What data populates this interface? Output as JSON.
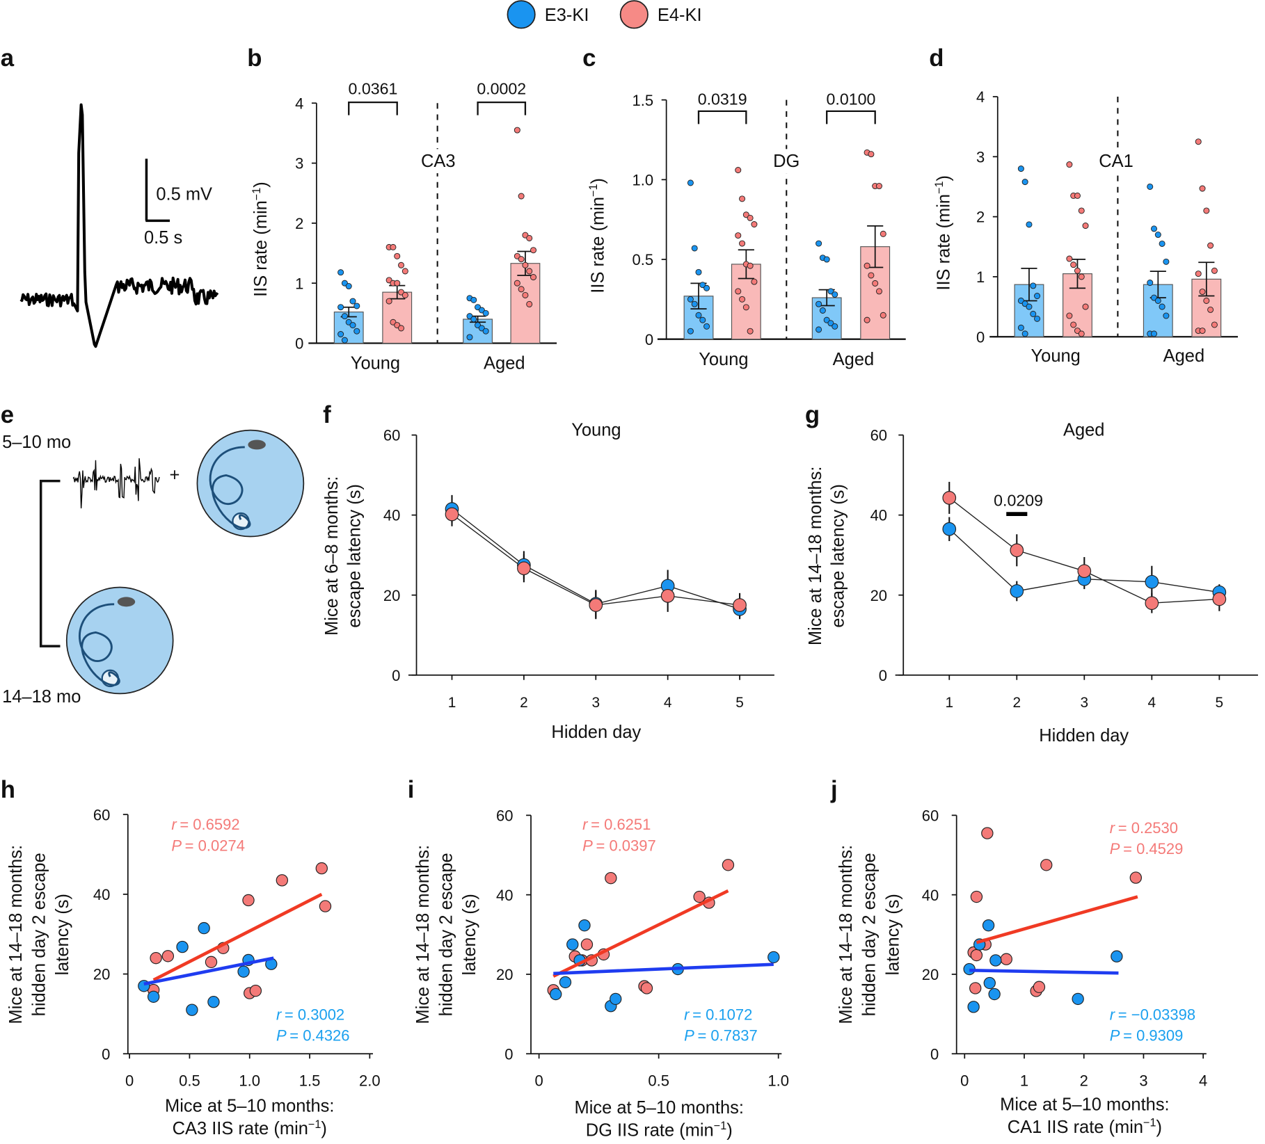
{
  "legend": [
    {
      "name": "E3-KI",
      "color": "#1a94f0"
    },
    {
      "name": "E4-KI",
      "color": "#f68a86"
    }
  ],
  "colors": {
    "e3_point": "#1a94f0",
    "e4_point": "#f47a78",
    "e3_bar": "#80c8f8",
    "e4_bar": "#f9b9b8",
    "e3_line": "#1f3cf0",
    "e4_line": "#f03a24",
    "e3_text": "#1aa0ef",
    "e4_text": "#f47a78"
  },
  "panels": {
    "a": "a",
    "b": "b",
    "c": "c",
    "d": "d",
    "e": "e",
    "f": "f",
    "g": "g",
    "h": "h",
    "i": "i",
    "j": "j"
  },
  "panel_a": {
    "scale_v": "0.5 mV",
    "scale_h": "0.5 s"
  },
  "panel_e": {
    "young_age": "5–10 mo",
    "aged_age": "14–18 mo",
    "plus": "+"
  },
  "chart_data": [
    {
      "id": "b",
      "type": "bar",
      "region": "CA3",
      "ylabel": "IIS rate (min",
      "ylabel_sup": "−1",
      "ylabel_end": ")",
      "ylim": [
        0,
        4
      ],
      "yticks": [
        "0",
        "1",
        "2",
        "3",
        "4"
      ],
      "categories": [
        "Young",
        "Aged"
      ],
      "bars": {
        "E3-KI": [
          0.52,
          0.4
        ],
        "E4-KI": [
          0.85,
          1.33
        ]
      },
      "sem": {
        "E3-KI": [
          0.08,
          0.05
        ],
        "E4-KI": [
          0.11,
          0.2
        ]
      },
      "points": {
        "E3-KI": [
          [
            1.18,
            1.0,
            0.95,
            0.7,
            0.62,
            0.6,
            0.45,
            0.35,
            0.3,
            0.2,
            0.15,
            0.05
          ],
          [
            0.75,
            0.72,
            0.6,
            0.55,
            0.5,
            0.45,
            0.4,
            0.3,
            0.25,
            0.2,
            0.1
          ]
        ],
        "E4-KI": [
          [
            1.6,
            1.6,
            1.45,
            1.3,
            1.2,
            1.05,
            1.0,
            1.0,
            0.85,
            0.8,
            0.7,
            0.35,
            0.3,
            0.25
          ],
          [
            3.55,
            2.45,
            1.8,
            1.75,
            1.55,
            1.45,
            1.4,
            1.3,
            1.2,
            1.1,
            1.0,
            0.9,
            0.8,
            0.65
          ]
        ]
      },
      "pvalues": [
        "0.0361",
        "0.0002"
      ]
    },
    {
      "id": "c",
      "type": "bar",
      "region": "DG",
      "ylabel": "IIS rate (min",
      "ylabel_sup": "−1",
      "ylabel_end": ")",
      "ylim": [
        0,
        1.5
      ],
      "yticks": [
        "0",
        "0.5",
        "1.0",
        "1.5"
      ],
      "categories": [
        "Young",
        "Aged"
      ],
      "bars": {
        "E3-KI": [
          0.27,
          0.26
        ],
        "E4-KI": [
          0.47,
          0.58
        ]
      },
      "sem": {
        "E3-KI": [
          0.08,
          0.05
        ],
        "E4-KI": [
          0.09,
          0.13
        ]
      },
      "points": {
        "E3-KI": [
          [
            0.98,
            0.57,
            0.42,
            0.34,
            0.32,
            0.25,
            0.22,
            0.15,
            0.12,
            0.08,
            0.05
          ],
          [
            0.6,
            0.51,
            0.5,
            0.3,
            0.28,
            0.22,
            0.18,
            0.12,
            0.1,
            0.08,
            0.06
          ]
        ],
        "E4-KI": [
          [
            1.06,
            0.88,
            0.78,
            0.76,
            0.72,
            0.65,
            0.6,
            0.47,
            0.46,
            0.36,
            0.3,
            0.25,
            0.2,
            0.05
          ],
          [
            1.17,
            1.16,
            0.96,
            0.96,
            0.66,
            0.46,
            0.4,
            0.35,
            0.3,
            0.15,
            0.12
          ]
        ]
      },
      "pvalues": [
        "0.0319",
        "0.0100"
      ]
    },
    {
      "id": "d",
      "type": "bar",
      "region": "CA1",
      "ylabel": "IIS rate (min",
      "ylabel_sup": "−1",
      "ylabel_end": ")",
      "ylim": [
        0,
        4
      ],
      "yticks": [
        "0",
        "1",
        "2",
        "3",
        "4"
      ],
      "categories": [
        "Young",
        "Aged"
      ],
      "bars": {
        "E3-KI": [
          0.87,
          0.87
        ],
        "E4-KI": [
          1.05,
          0.96
        ]
      },
      "sem": {
        "E3-KI": [
          0.27,
          0.22
        ],
        "E4-KI": [
          0.24,
          0.28
        ]
      },
      "points": {
        "E3-KI": [
          [
            2.8,
            2.58,
            1.87,
            0.85,
            0.68,
            0.6,
            0.55,
            0.5,
            0.38,
            0.3,
            0.15,
            0.05
          ],
          [
            2.5,
            1.8,
            1.7,
            1.55,
            1.25,
            0.9,
            0.65,
            0.6,
            0.5,
            0.35,
            0.05,
            0.05
          ]
        ],
        "E4-KI": [
          [
            2.87,
            2.35,
            2.35,
            2.1,
            1.85,
            1.3,
            1.2,
            1.1,
            1.0,
            0.5,
            0.35,
            0.2,
            0.1,
            0.05
          ],
          [
            3.25,
            2.47,
            2.1,
            1.52,
            1.1,
            1.05,
            0.75,
            0.6,
            0.45,
            0.2,
            0.1,
            0.1
          ]
        ]
      },
      "pvalues": []
    },
    {
      "id": "f",
      "type": "line",
      "title": "Young",
      "xlabel": "Hidden day",
      "ylabel_lines": [
        "Mice at 6–8 months:",
        "escape latency (s)"
      ],
      "ylim": [
        0,
        60
      ],
      "yticks": [
        "0",
        "20",
        "40",
        "60"
      ],
      "x": [
        1,
        2,
        3,
        4,
        5
      ],
      "xticks": [
        "1",
        "2",
        "3",
        "4",
        "5"
      ],
      "series": [
        {
          "name": "E3-KI",
          "values": [
            41.5,
            27.5,
            17.8,
            22.3,
            16.5
          ],
          "err": [
            3.5,
            3.5,
            3.5,
            4,
            2.5
          ]
        },
        {
          "name": "E4-KI",
          "values": [
            40.2,
            26.7,
            17.5,
            19.8,
            17.5
          ],
          "err": [
            3,
            3.5,
            3.5,
            4,
            3
          ]
        }
      ],
      "annotation": ""
    },
    {
      "id": "g",
      "type": "line",
      "title": "Aged",
      "xlabel": "Hidden day",
      "ylabel_lines": [
        "Mice at 14–18 months:",
        "escape latency (s)"
      ],
      "ylim": [
        0,
        60
      ],
      "yticks": [
        "0",
        "20",
        "40",
        "60"
      ],
      "x": [
        1,
        2,
        3,
        4,
        5
      ],
      "xticks": [
        "1",
        "2",
        "3",
        "4",
        "5"
      ],
      "series": [
        {
          "name": "E3-KI",
          "values": [
            36.5,
            21,
            24,
            23.3,
            20.7
          ],
          "err": [
            3,
            2.5,
            2.5,
            4,
            2
          ]
        },
        {
          "name": "E4-KI",
          "values": [
            44.3,
            31.2,
            26,
            18,
            19
          ],
          "err": [
            4,
            4,
            3.5,
            2.5,
            3
          ]
        }
      ],
      "annotation": "0.0209",
      "annotation_day": 2
    },
    {
      "id": "h",
      "type": "scatter",
      "xlabel_lines": [
        "Mice at 5–10 months:",
        "CA3 IIS rate (min"
      ],
      "xlabel_sup": "−1",
      "xlabel_end": ")",
      "ylabel_lines": [
        "Mice at 14–18 months:",
        "hidden day 2 escape",
        "latency (s)"
      ],
      "xlim": [
        0,
        2
      ],
      "xticks": [
        "0",
        "0.5",
        "1.0",
        "1.5",
        "2.0"
      ],
      "xtick_vals": [
        0,
        0.5,
        1,
        1.5,
        2
      ],
      "ylim": [
        0,
        60
      ],
      "yticks": [
        "0",
        "20",
        "40",
        "60"
      ],
      "series": [
        {
          "name": "E4-KI",
          "points": [
            [
              0.2,
              16
            ],
            [
              0.22,
              24
            ],
            [
              0.32,
              24.5
            ],
            [
              0.68,
              23
            ],
            [
              0.78,
              26.5
            ],
            [
              0.99,
              38.5
            ],
            [
              1.0,
              15.2
            ],
            [
              1.05,
              15.8
            ],
            [
              1.27,
              43.5
            ],
            [
              1.6,
              46.5
            ],
            [
              1.63,
              37
            ]
          ],
          "fit": [
            [
              0.2,
              18.5
            ],
            [
              1.6,
              40
            ]
          ],
          "r_label": "r",
          "r": "= 0.6592",
          "p_label": "P",
          "p": "= 0.0274"
        },
        {
          "name": "E3-KI",
          "points": [
            [
              0.12,
              17
            ],
            [
              0.2,
              14.3
            ],
            [
              0.44,
              26.8
            ],
            [
              0.52,
              11
            ],
            [
              0.62,
              31.5
            ],
            [
              0.7,
              13
            ],
            [
              0.95,
              20.6
            ],
            [
              0.99,
              23.5
            ],
            [
              1.18,
              22.5
            ]
          ],
          "fit": [
            [
              0.12,
              17.5
            ],
            [
              1.2,
              24
            ]
          ],
          "r_label": "r",
          "r": "= 0.3002",
          "p_label": "P",
          "p": "= 0.4326"
        }
      ]
    },
    {
      "id": "i",
      "type": "scatter",
      "xlabel_lines": [
        "Mice at 5–10 months:",
        "DG IIS rate (min"
      ],
      "xlabel_sup": "−1",
      "xlabel_end": ")",
      "ylabel_lines": [
        "Mice at 14–18 months:",
        "hidden day 2 escape",
        "latency (s)"
      ],
      "xlim": [
        0,
        1
      ],
      "xticks": [
        "0",
        "0.5",
        "1.0"
      ],
      "xtick_vals": [
        0,
        0.5,
        1
      ],
      "ylim": [
        0,
        60
      ],
      "yticks": [
        "0",
        "20",
        "40",
        "60"
      ],
      "series": [
        {
          "name": "E4-KI",
          "points": [
            [
              0.06,
              16
            ],
            [
              0.15,
              24.5
            ],
            [
              0.18,
              23.5
            ],
            [
              0.2,
              27.5
            ],
            [
              0.22,
              23.5
            ],
            [
              0.27,
              25
            ],
            [
              0.3,
              44.2
            ],
            [
              0.44,
              17
            ],
            [
              0.45,
              16.5
            ],
            [
              0.67,
              39.5
            ],
            [
              0.71,
              38
            ],
            [
              0.79,
              47.5
            ]
          ],
          "fit": [
            [
              0.06,
              19.5
            ],
            [
              0.79,
              41
            ]
          ],
          "r_label": "r",
          "r": "= 0.6251",
          "p_label": "P",
          "p": "= 0.0397"
        },
        {
          "name": "E3-KI",
          "points": [
            [
              0.07,
              15
            ],
            [
              0.11,
              18
            ],
            [
              0.14,
              27.5
            ],
            [
              0.17,
              23.5
            ],
            [
              0.19,
              32.3
            ],
            [
              0.3,
              12
            ],
            [
              0.32,
              13.8
            ],
            [
              0.58,
              21.3
            ],
            [
              0.98,
              24.3
            ]
          ],
          "fit": [
            [
              0.06,
              20.2
            ],
            [
              0.98,
              22.5
            ]
          ],
          "r_label": "r",
          "r": "= 0.1072",
          "p_label": "P",
          "p": "= 0.7837"
        }
      ]
    },
    {
      "id": "j",
      "type": "scatter",
      "xlabel_lines": [
        "Mice at 5–10 months:",
        "CA1 IIS rate (min"
      ],
      "xlabel_sup": "−1",
      "xlabel_end": ")",
      "ylabel_lines": [
        "Mice at 14–18 months:",
        "hidden day 2 escape",
        "latency (s)"
      ],
      "xlim": [
        0,
        4
      ],
      "xticks": [
        "0",
        "1",
        "2",
        "3",
        "4"
      ],
      "xtick_vals": [
        0,
        1,
        2,
        3,
        4
      ],
      "ylim": [
        0,
        60
      ],
      "yticks": [
        "0",
        "20",
        "40",
        "60"
      ],
      "series": [
        {
          "name": "E4-KI",
          "points": [
            [
              0.15,
              25.5
            ],
            [
              0.18,
              16.5
            ],
            [
              0.2,
              24.8
            ],
            [
              0.2,
              39.5
            ],
            [
              0.35,
              27.5
            ],
            [
              0.38,
              55.5
            ],
            [
              0.7,
              23.8
            ],
            [
              1.2,
              15.8
            ],
            [
              1.25,
              16.8
            ],
            [
              1.37,
              47.5
            ],
            [
              2.87,
              44.3
            ]
          ],
          "fit": [
            [
              0.2,
              28
            ],
            [
              2.9,
              39.5
            ]
          ],
          "r_label": "r",
          "r": "= 0.2530",
          "p_label": "P",
          "p": "= 0.4529"
        },
        {
          "name": "E3-KI",
          "points": [
            [
              0.08,
              21.3
            ],
            [
              0.15,
              11.8
            ],
            [
              0.25,
              27.5
            ],
            [
              0.4,
              32.3
            ],
            [
              0.42,
              17.8
            ],
            [
              0.5,
              15
            ],
            [
              0.52,
              23.5
            ],
            [
              1.9,
              13.8
            ],
            [
              2.55,
              24.5
            ]
          ],
          "fit": [
            [
              0.08,
              21
            ],
            [
              2.58,
              20.3
            ]
          ],
          "r_label": "r",
          "r": "= −0.03398",
          "p_label": "P",
          "p": "= 0.9309"
        }
      ]
    }
  ]
}
